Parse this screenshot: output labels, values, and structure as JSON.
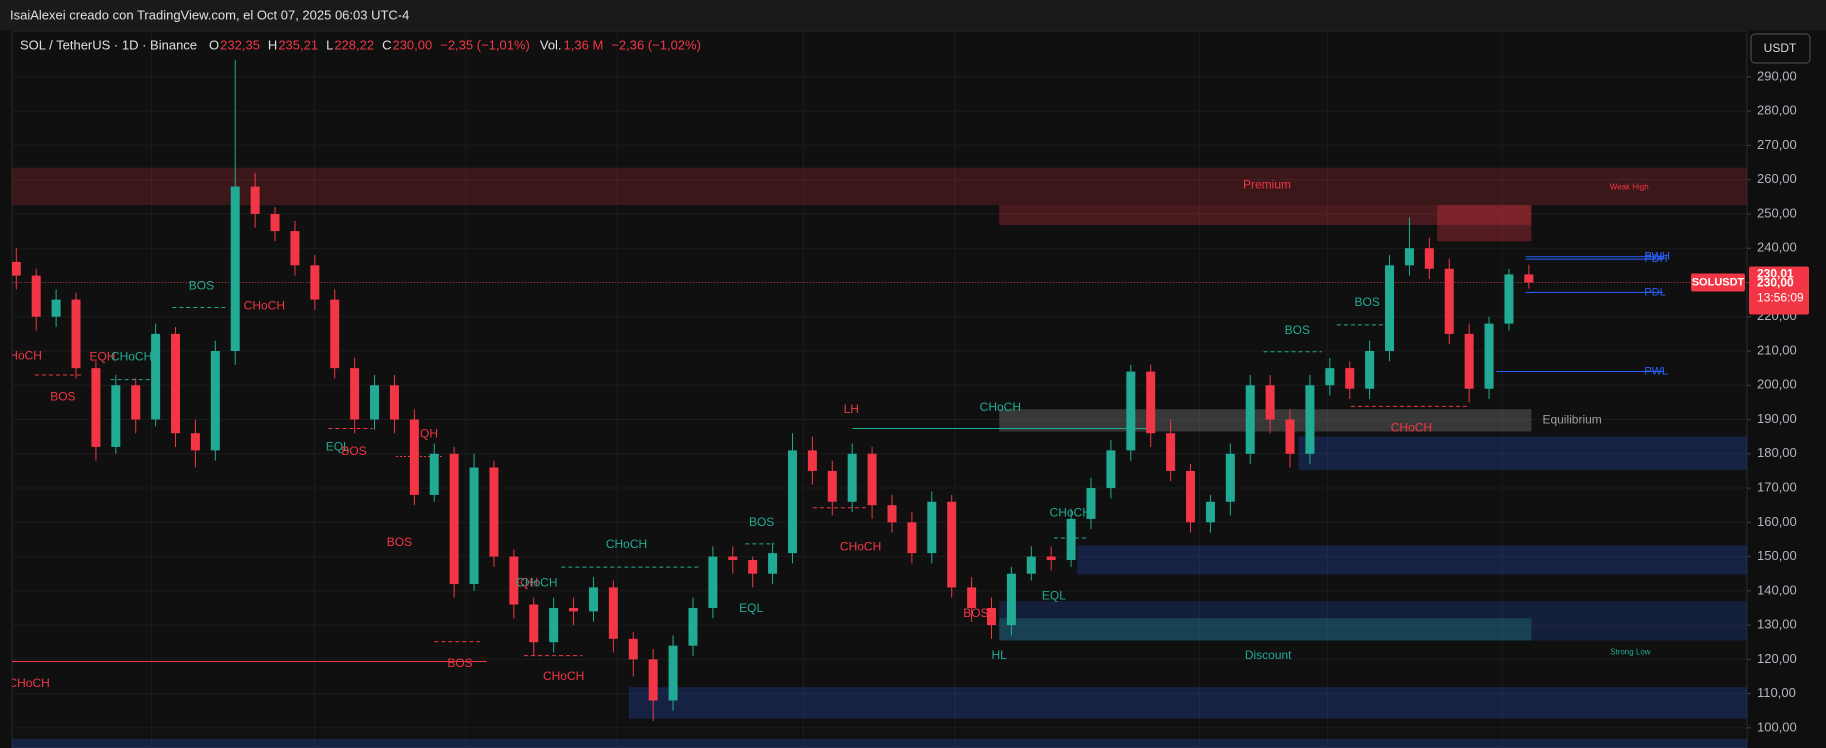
{
  "header": {
    "credit": "IsaiAlexei creado con TradingView.com, el Oct 07, 2025 06:03 UTC-4"
  },
  "chart_data": {
    "type": "candlestick",
    "title": "SOL / TetherUS · 1D · Binance",
    "legend": [
      {
        "key": "O",
        "text": "232,35"
      },
      {
        "key": "H",
        "text": "235,21"
      },
      {
        "key": "L",
        "text": "228,22"
      },
      {
        "key": "C",
        "text": "230,00"
      }
    ],
    "change": "−2,35 (−1,01%)",
    "volume": {
      "key": "Vol.",
      "text": "1,36 M",
      "change": "−2,36 (−1,02%)"
    },
    "currency_button": "USDT",
    "up_color": "#22ab94",
    "down_color": "#f23645",
    "open": [
      236,
      232,
      220,
      225,
      205,
      182,
      200,
      190,
      215,
      186,
      181,
      210,
      258,
      250,
      245,
      235,
      225,
      205,
      190,
      200,
      190,
      168,
      180,
      142,
      176,
      150,
      136,
      125,
      135,
      134,
      141,
      126,
      120,
      108,
      124,
      135,
      150,
      149,
      145,
      151,
      181,
      175,
      166,
      180,
      165,
      160,
      151,
      166,
      141,
      135,
      130,
      145,
      150,
      149,
      161,
      170,
      181,
      204,
      186,
      175,
      160,
      166,
      180,
      200,
      190,
      180,
      200,
      205,
      199,
      210,
      235,
      240,
      234,
      215,
      199,
      218,
      232.35
    ],
    "high": [
      240,
      234,
      228,
      227,
      207,
      203,
      202,
      218,
      217,
      190,
      213,
      295,
      262,
      252,
      248,
      238,
      228,
      208,
      203,
      203,
      193,
      183,
      182,
      180,
      178,
      152,
      138,
      138,
      138,
      144,
      143,
      128,
      123,
      127,
      138,
      153,
      153,
      150,
      154,
      186,
      185,
      178,
      183,
      182,
      168,
      163,
      169,
      168,
      144,
      138,
      147,
      153,
      153,
      164,
      173,
      184,
      206,
      206,
      190,
      177,
      168,
      183,
      203,
      203,
      193,
      203,
      208,
      207,
      213,
      238,
      249,
      243,
      237,
      218,
      220,
      234,
      235.21
    ],
    "low": [
      228,
      216,
      217,
      202,
      178,
      180,
      186,
      188,
      182,
      176,
      178,
      206,
      246,
      242,
      232,
      222,
      202,
      186,
      187,
      186,
      165,
      166,
      138,
      140,
      147,
      132,
      121,
      122,
      130,
      131,
      122,
      115,
      102,
      105,
      121,
      132,
      145,
      141,
      142,
      148,
      171,
      162,
      163,
      161,
      157,
      148,
      148,
      138,
      131,
      126,
      127,
      143,
      146,
      147,
      158,
      167,
      178,
      182,
      172,
      157,
      157,
      162,
      177,
      186,
      176,
      177,
      197,
      196,
      196,
      207,
      232,
      231,
      212,
      195,
      196,
      216,
      228.22
    ],
    "close": [
      232,
      220,
      225,
      205,
      182,
      200,
      190,
      215,
      186,
      181,
      210,
      258,
      250,
      245,
      235,
      225,
      205,
      190,
      200,
      190,
      168,
      180,
      142,
      176,
      150,
      136,
      125,
      135,
      134,
      141,
      126,
      120,
      108,
      124,
      135,
      150,
      149,
      145,
      151,
      181,
      175,
      166,
      180,
      165,
      160,
      151,
      166,
      141,
      135,
      130,
      145,
      150,
      149,
      161,
      170,
      181,
      204,
      186,
      175,
      160,
      166,
      180,
      200,
      190,
      180,
      200,
      205,
      199,
      210,
      235,
      240,
      234,
      215,
      199,
      218,
      232.35,
      230
    ],
    "ylim": [
      94.13,
      303.28
    ],
    "yticks": [
      {
        "value": 100,
        "label": "100,00"
      },
      {
        "value": 110,
        "label": "110,00"
      },
      {
        "value": 120,
        "label": "120,00"
      },
      {
        "value": 130,
        "label": "130,00"
      },
      {
        "value": 140,
        "label": "140,00"
      },
      {
        "value": 150,
        "label": "150,00"
      },
      {
        "value": 160,
        "label": "160,00"
      },
      {
        "value": 170,
        "label": "170,00"
      },
      {
        "value": 180,
        "label": "180,00"
      },
      {
        "value": 190,
        "label": "190,00"
      },
      {
        "value": 200,
        "label": "200,00"
      },
      {
        "value": 210,
        "label": "210,00"
      },
      {
        "value": 220,
        "label": "220,00"
      },
      {
        "value": 230,
        "label": "230,00"
      },
      {
        "value": 240,
        "label": "240,00"
      },
      {
        "value": 250,
        "label": "250,00"
      },
      {
        "value": 260,
        "label": "260,00"
      },
      {
        "value": 270,
        "label": "270,00"
      },
      {
        "value": 280,
        "label": "280,00"
      },
      {
        "value": 290,
        "label": "290,00"
      }
    ],
    "grid": true,
    "zones": [
      {
        "high": 263.5,
        "low": 252.6,
        "color": "rgba(242,54,69,0.2)"
      },
      {
        "high": 252.6,
        "low": 246.8,
        "color": "rgba(242,54,69,0.25)"
      },
      {
        "high": 252.6,
        "low": 242,
        "color": "rgba(242,54,69,0.3)"
      },
      {
        "high": 193,
        "low": 186.5,
        "color": "rgba(150,150,150,0.3)"
      },
      {
        "high": 185,
        "low": 175.3,
        "color": "rgba(41,98,255,0.22)"
      },
      {
        "high": 153.3,
        "low": 144.8,
        "color": "rgba(41,98,255,0.22)"
      },
      {
        "high": 137,
        "low": 125.5,
        "color": "rgba(41,98,255,0.18)"
      },
      {
        "high": 132,
        "low": 125.5,
        "color": "rgba(34,171,148,0.25)"
      },
      {
        "high": 111.9,
        "low": 102.7,
        "color": "rgba(41,98,255,0.22)"
      },
      {
        "high": 96.8,
        "low": 94.13,
        "color": "rgba(41,98,255,0.22)"
      }
    ],
    "levels": [
      {
        "label": "PWH",
        "value": 237.5
      },
      {
        "label": "PDH",
        "value": 236.8
      },
      {
        "label": "PDL",
        "value": 227.1
      },
      {
        "label": "PWL",
        "value": 204
      }
    ],
    "level_color": "#2962ff",
    "price_tags": [
      {
        "value": 230.01,
        "label": "230,01"
      },
      {
        "value": 230,
        "label": "230,00"
      }
    ],
    "countdown": "13:56:09",
    "symbol_tag": "SOLUSDT",
    "annotations": [
      {
        "text": "BOS",
        "color": "#22ab94"
      },
      {
        "text": "CHoCH",
        "color": "#f23645"
      },
      {
        "text": "HoCH",
        "color": "#f23645"
      },
      {
        "text": "EQH",
        "color": "#f23645"
      },
      {
        "text": "CHoCH",
        "color": "#22ab94"
      },
      {
        "text": "BOS",
        "color": "#f23645"
      },
      {
        "text": "EQL",
        "color": "#22ab94"
      },
      {
        "text": "BOS",
        "color": "#f23645"
      },
      {
        "text": "EQH",
        "color": "#f23645"
      },
      {
        "text": "BOS",
        "color": "#f23645"
      },
      {
        "text": "BOS",
        "color": "#f23645"
      },
      {
        "text": "CHoCH",
        "color": "#f23645"
      },
      {
        "text": "EQH",
        "color": "#f23645"
      },
      {
        "text": "CHoCH",
        "color": "#22ab94"
      },
      {
        "text": "CHoCH",
        "color": "#f23645"
      },
      {
        "text": "CHoCH",
        "color": "#22ab94"
      },
      {
        "text": "BOS",
        "color": "#22ab94"
      },
      {
        "text": "EQL",
        "color": "#22ab94"
      },
      {
        "text": "LH",
        "color": "#f23645"
      },
      {
        "text": "CHoCH",
        "color": "#f23645"
      },
      {
        "text": "CHoCH",
        "color": "#22ab94"
      },
      {
        "text": "CHoCH",
        "color": "#22ab94"
      },
      {
        "text": "BOS",
        "color": "#f23645"
      },
      {
        "text": "EQL",
        "color": "#22ab94"
      },
      {
        "text": "HL",
        "color": "#22ab94"
      },
      {
        "text": "Discount",
        "color": "#22ab94"
      },
      {
        "text": "Premium",
        "color": "#f23645"
      },
      {
        "text": "Weak High",
        "color": "#f23645"
      },
      {
        "text": "Strong Low",
        "color": "#22ab94"
      },
      {
        "text": "Equilibrium",
        "color": "#9e9e9e"
      },
      {
        "text": "BOS",
        "color": "#22ab94"
      },
      {
        "text": "BOS",
        "color": "#22ab94"
      },
      {
        "text": "CHoCH",
        "color": "#f23645"
      }
    ]
  }
}
